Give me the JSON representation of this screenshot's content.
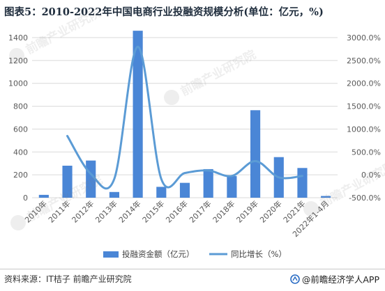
{
  "title": "图表5：2010-2022年中国电商行业投融资规模分析(单位：亿元，%)",
  "source_text": "资料来源：IT桔子 前瞻产业研究院",
  "brand_text": "@前瞻经济学人APP",
  "watermark_text": "前瞻产业研究院",
  "colors": {
    "bar": "#4a86d6",
    "line": "#5b9bd5",
    "grid": "#d9d9d9",
    "axis_text": "#595959"
  },
  "chart_data": {
    "type": "bar+line",
    "categories": [
      "2010年",
      "2011年",
      "2012年",
      "2013年",
      "2014年",
      "2015年",
      "2016年",
      "2017年",
      "2018年",
      "2019年",
      "2020年",
      "2021年",
      "2022年1-4月"
    ],
    "series": [
      {
        "name": "投融资金额（亿元）",
        "type": "bar",
        "axis": "left",
        "values": [
          25,
          280,
          325,
          50,
          1460,
          95,
          130,
          250,
          190,
          765,
          355,
          260,
          15
        ]
      },
      {
        "name": "同比增长（%）",
        "type": "line",
        "axis": "right",
        "values": [
          null,
          850,
          20,
          -85,
          2800,
          -93,
          40,
          95,
          -25,
          300,
          -55,
          -25,
          null
        ]
      }
    ],
    "left_axis": {
      "min": 0,
      "max": 1400,
      "step": 200,
      "tick_labels": [
        "0",
        "200",
        "400",
        "600",
        "800",
        "1000",
        "1200",
        "1400"
      ]
    },
    "right_axis": {
      "min": -500,
      "max": 3000,
      "step": 500,
      "tick_labels": [
        "-500.0%",
        "0.0%",
        "500.0%",
        "1000.0%",
        "1500.0%",
        "2000.0%",
        "2500.0%",
        "3000.0%"
      ]
    },
    "grid": true,
    "legend_position": "bottom"
  }
}
